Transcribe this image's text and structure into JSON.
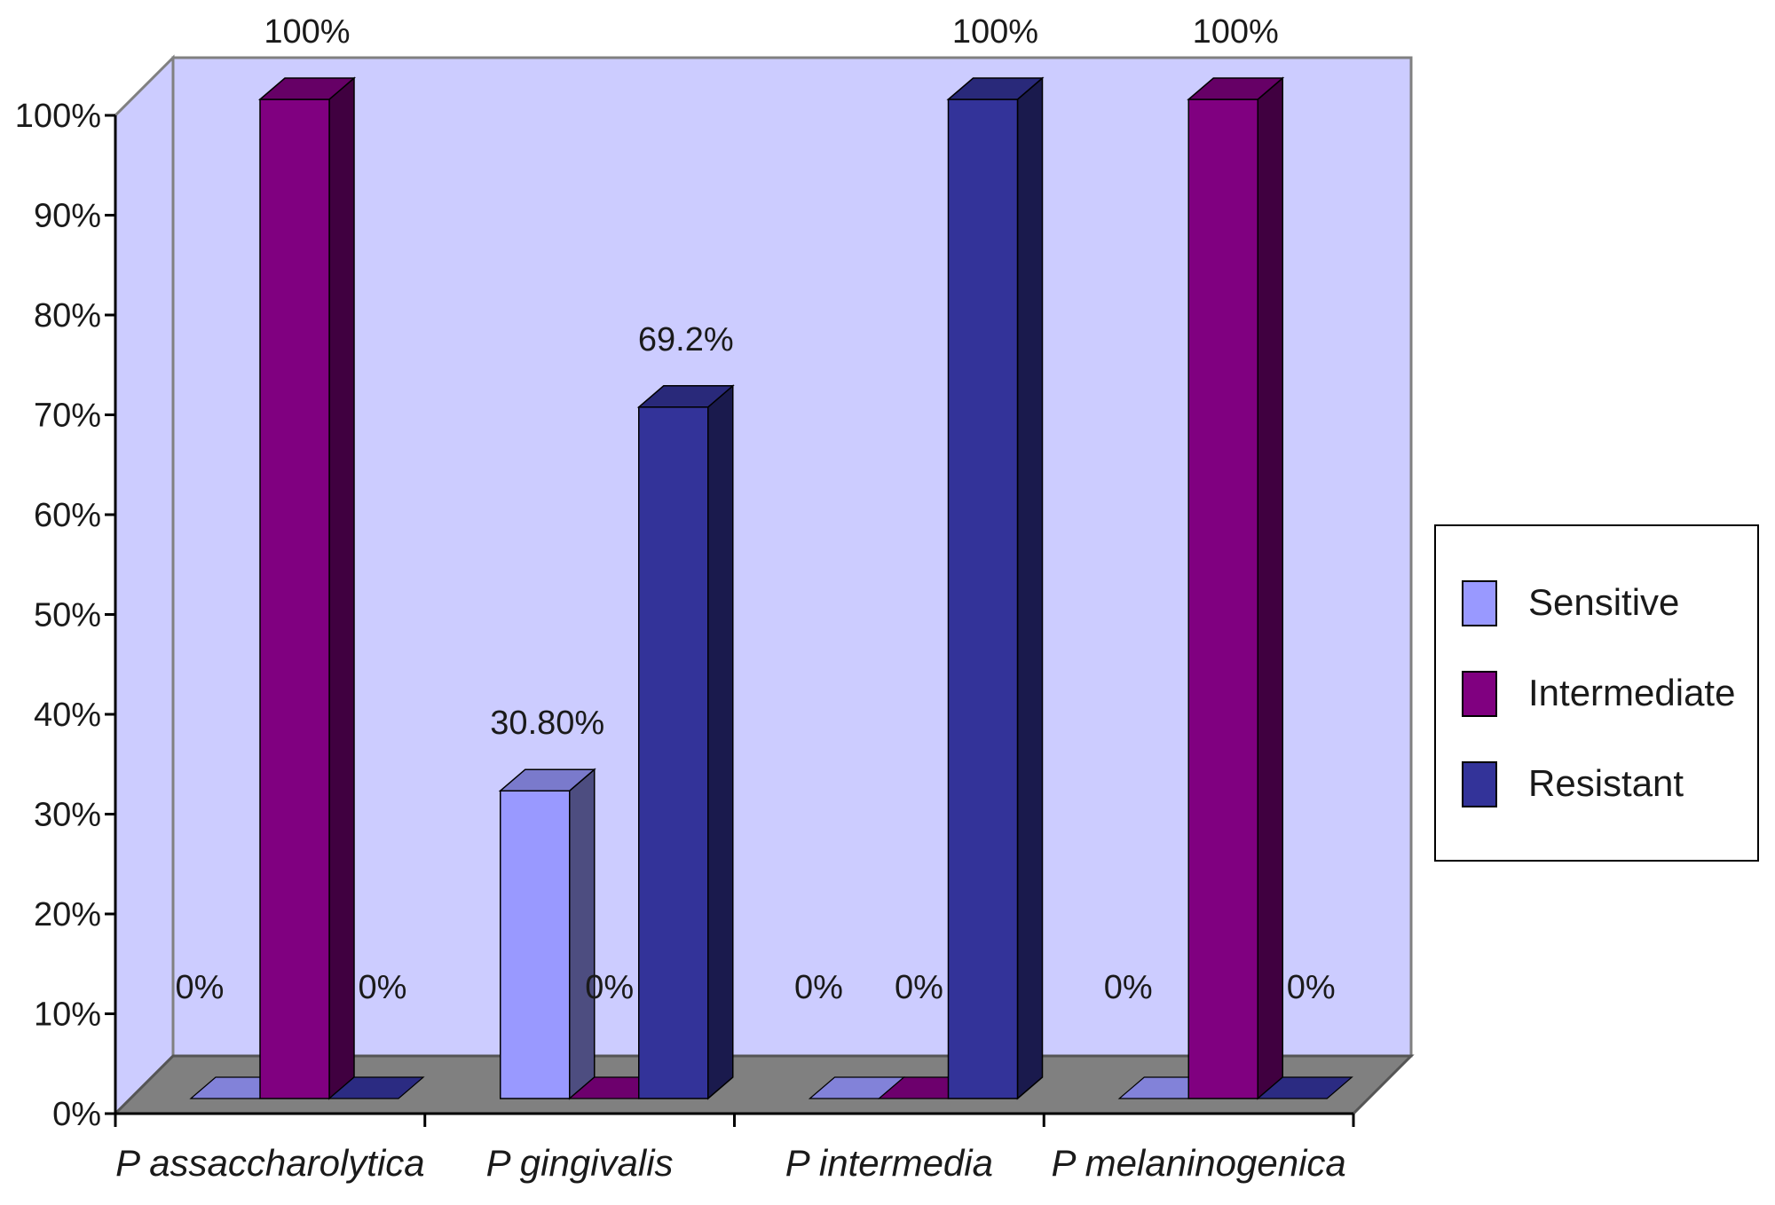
{
  "chart_data": {
    "type": "bar",
    "title": "",
    "xlabel": "",
    "ylabel": "",
    "ylim": [
      0,
      100
    ],
    "y_ticks": [
      "0%",
      "10%",
      "20%",
      "30%",
      "40%",
      "50%",
      "60%",
      "70%",
      "80%",
      "90%",
      "100%"
    ],
    "categories": [
      "P assaccharolytica",
      "P gingivalis",
      "P intermedia",
      "P melaninogenica"
    ],
    "series": [
      {
        "name": "Sensitive",
        "color": "#9999ff",
        "values": [
          0,
          30.8,
          0,
          0
        ],
        "labels": [
          "0%",
          "30.80%",
          "0%",
          "0%"
        ]
      },
      {
        "name": "Intermediate",
        "color": "#800080",
        "values": [
          100,
          0,
          0,
          100
        ],
        "labels": [
          "100%",
          "0%",
          "0%",
          "100%"
        ]
      },
      {
        "name": "Resistant",
        "color": "#333399",
        "values": [
          0,
          69.2,
          100,
          0
        ],
        "labels": [
          "0%",
          "69.2%",
          "100%",
          "0%"
        ]
      }
    ],
    "legend_position": "right",
    "style": "3d-clustered-column",
    "colors": {
      "plot_back_wall": "#ccccff",
      "plot_floor": "#808080"
    },
    "grid": false
  }
}
